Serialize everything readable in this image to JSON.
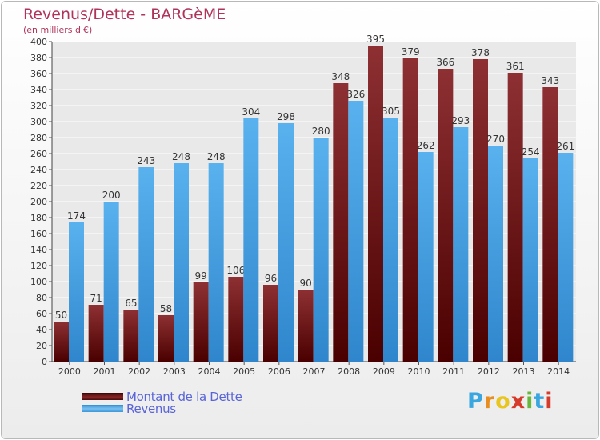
{
  "title": "Revenus/Dette - BARGèME",
  "subtitle": "(en milliers d'€)",
  "chart_data": {
    "type": "bar",
    "categories": [
      "2000",
      "2001",
      "2002",
      "2003",
      "2004",
      "2005",
      "2006",
      "2007",
      "2008",
      "2009",
      "2010",
      "2011",
      "2012",
      "2013",
      "2014"
    ],
    "series": [
      {
        "name": "Montant de la Dette",
        "color": "#7a1517",
        "values": [
          50,
          71,
          65,
          58,
          99,
          106,
          96,
          90,
          348,
          395,
          379,
          366,
          378,
          361,
          343
        ]
      },
      {
        "name": "Revenus",
        "color": "#4aa5e6",
        "values": [
          174,
          200,
          243,
          248,
          248,
          304,
          298,
          280,
          326,
          305,
          262,
          293,
          270,
          254,
          261
        ]
      }
    ],
    "ylim": [
      0,
      400
    ],
    "ytick_step": 20,
    "grid": true,
    "legend_position": "bottom-left"
  },
  "legend": {
    "debt_label": "Montant de la Dette",
    "revenue_label": "Revenus"
  },
  "logo": {
    "text": "Proxiti",
    "letter_colors": [
      "#3aa6e0",
      "#e88d1f",
      "#e8c51f",
      "#d63a2a",
      "#66b83a",
      "#3aa6e0",
      "#d63a2a"
    ]
  }
}
